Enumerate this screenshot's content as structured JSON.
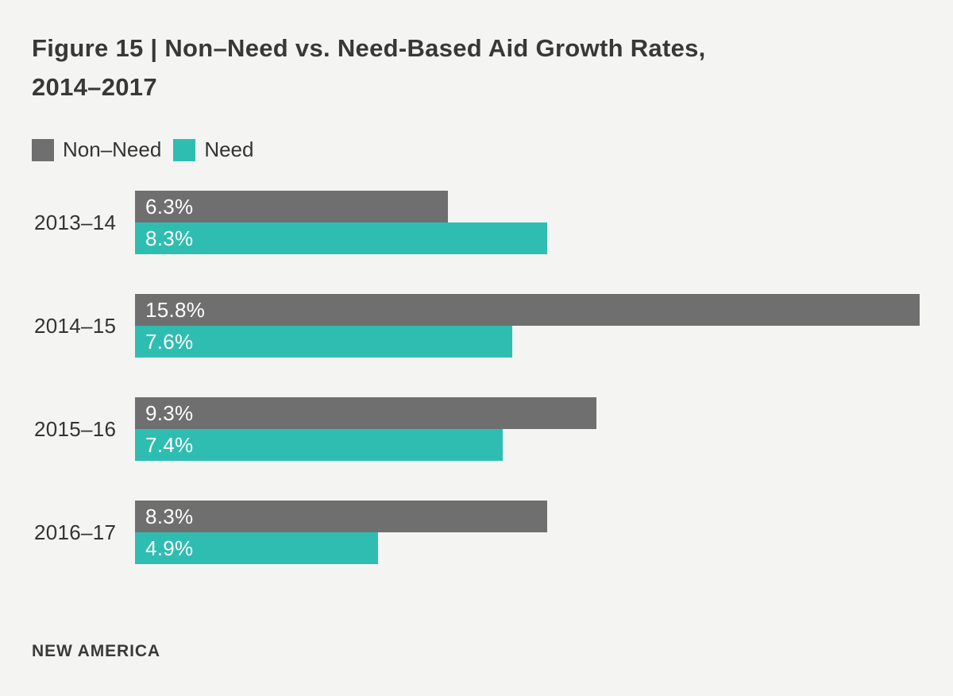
{
  "figure": {
    "title_line1": "Figure 15 | Non–Need vs. Need-Based Aid Growth Rates,",
    "title_line2": "2014–2017",
    "source_label": "NEW AMERICA"
  },
  "colors": {
    "background": "#F4F4F3",
    "non_need_bar": "#6F6F6F",
    "need_bar": "#2FBDB2",
    "title_text": "#383838",
    "value_label_text": "#FFFFFF"
  },
  "chart_data": {
    "type": "bar",
    "orientation": "horizontal",
    "title": "Figure 15 | Non–Need vs. Need-Based Aid Growth Rates, 2014–2017",
    "categories": [
      "2013–14",
      "2014–15",
      "2015–16",
      "2016–17"
    ],
    "series": [
      {
        "name": "Non–Need",
        "color": "#6F6F6F",
        "values": [
          6.3,
          15.8,
          9.3,
          8.3
        ]
      },
      {
        "name": "Need",
        "color": "#2FBDB2",
        "values": [
          8.3,
          7.6,
          7.4,
          4.9
        ]
      }
    ],
    "value_label_format": "percent_one_decimal",
    "value_labels": [
      [
        "6.3%",
        "15.8%",
        "9.3%",
        "8.3%"
      ],
      [
        "8.3%",
        "7.6%",
        "7.4%",
        "4.9%"
      ]
    ],
    "xlim": [
      0,
      15.8
    ],
    "axis_ticks_shown": false,
    "grid": false,
    "legend_position": "top-left"
  }
}
